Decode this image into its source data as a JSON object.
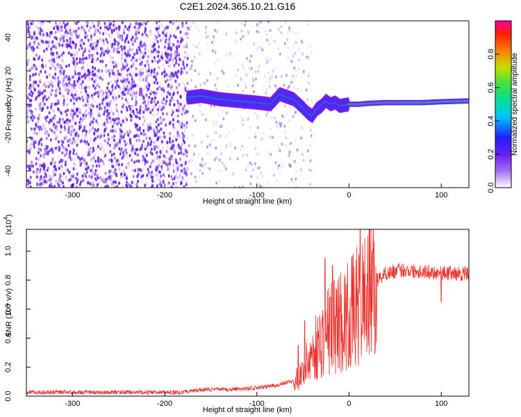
{
  "title": "C2E1.2024.365.10.21.G16",
  "chart_data": [
    {
      "type": "heatmap",
      "name": "spectrogram",
      "xlabel": "Height of straight line (km)",
      "ylabel": "Frequency (Hz)",
      "xlim": [
        -350,
        130
      ],
      "ylim": [
        -50,
        50
      ],
      "xticks": [
        -300,
        -200,
        -100,
        0,
        100
      ],
      "yticks": [
        -40,
        -20,
        0,
        20,
        40
      ],
      "colorbar": {
        "label": "Normalized spectral amplitude",
        "range": [
          0,
          1
        ],
        "ticks": [
          "0.0",
          "0.2",
          "0.4",
          "0.6",
          "0.8"
        ],
        "colormap": [
          "#ffffff",
          "#a070f0",
          "#6a1df0",
          "#2020ff",
          "#00c0ff",
          "#00e0a0",
          "#40e040",
          "#c0e000",
          "#ff8000",
          "#ff2000",
          "#ff00a0"
        ]
      },
      "ridge": {
        "x": [
          -175,
          -160,
          -140,
          -120,
          -100,
          -85,
          -75,
          -60,
          -50,
          -45,
          -40,
          -35,
          -30,
          -25,
          -20,
          -15,
          -10,
          0,
          10,
          20,
          40,
          60,
          80,
          100,
          130
        ],
        "freq": [
          4,
          5,
          3,
          2,
          1,
          0,
          6,
          3,
          -2,
          -5,
          -7,
          -3,
          -1,
          2,
          0,
          1,
          -1,
          0,
          0,
          0.5,
          1,
          1,
          1,
          1.5,
          2
        ]
      },
      "noise_region_x": [
        -350,
        -175
      ]
    },
    {
      "type": "line",
      "name": "snr",
      "xlabel": "Height of straight line (km)",
      "ylabel": "SNR (10 * v/v)",
      "exponent_label": "(x10",
      "exponent_power": "4",
      "exponent_close": ")",
      "xlim": [
        -350,
        130
      ],
      "ylim": [
        0,
        1.15
      ],
      "xticks": [
        -300,
        -200,
        -100,
        0,
        100
      ],
      "yticks": [
        "0.0",
        "0.2",
        "0.4",
        "0.6",
        "0.8",
        "1.0"
      ],
      "color": "#e8302a",
      "envelope": {
        "x": [
          -350,
          -250,
          -180,
          -160,
          -130,
          -100,
          -80,
          -60,
          -50,
          -40,
          -30,
          -20,
          -10,
          0,
          10,
          20,
          30,
          40,
          60,
          80,
          100,
          130
        ],
        "y": [
          0.02,
          0.02,
          0.02,
          0.04,
          0.04,
          0.05,
          0.07,
          0.1,
          0.17,
          0.3,
          0.38,
          0.48,
          0.52,
          0.55,
          0.62,
          0.72,
          0.8,
          0.85,
          0.87,
          0.86,
          0.85,
          0.84
        ]
      },
      "spikes": [
        {
          "x": -55,
          "y": 0.35
        },
        {
          "x": -48,
          "y": 0.52
        },
        {
          "x": -26,
          "y": 0.95
        },
        {
          "x": -18,
          "y": 0.9
        },
        {
          "x": 12,
          "y": 1.15
        },
        {
          "x": 100,
          "y": 0.65
        }
      ]
    }
  ]
}
